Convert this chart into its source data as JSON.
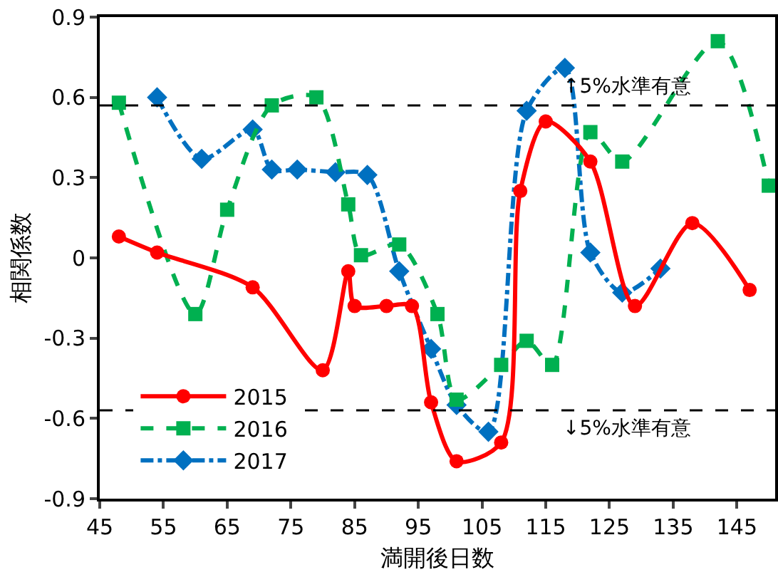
{
  "chart_data": {
    "type": "line",
    "xlabel": "満開後日数",
    "ylabel": "相関係数",
    "xlim": [
      45,
      151
    ],
    "xticks": [
      45,
      55,
      65,
      75,
      85,
      95,
      105,
      115,
      125,
      135,
      145
    ],
    "ylim": [
      -0.9,
      0.9
    ],
    "yticks": [
      -0.9,
      -0.6,
      -0.3,
      0,
      0.3,
      0.6,
      0.9
    ],
    "grid": false,
    "legend": "bottom left",
    "series": [
      {
        "name": "2015",
        "color": "#ff0000",
        "marker": "circle",
        "line_style": "solid",
        "x": [
          48,
          54,
          69,
          80,
          84,
          85,
          90,
          94,
          97,
          101,
          108,
          111,
          115,
          122,
          129,
          138,
          147
        ],
        "values": [
          0.08,
          0.02,
          -0.11,
          -0.42,
          -0.05,
          -0.18,
          -0.18,
          -0.18,
          -0.54,
          -0.76,
          -0.69,
          0.25,
          0.51,
          0.36,
          -0.18,
          0.13,
          -0.12
        ]
      },
      {
        "name": "2016",
        "color": "#00b050",
        "marker": "square",
        "line_style": "dashed",
        "x": [
          48,
          60,
          65,
          72,
          79,
          84,
          86,
          92,
          98,
          101,
          108,
          112,
          116,
          122,
          127,
          142,
          150
        ],
        "values": [
          0.58,
          -0.21,
          0.18,
          0.57,
          0.6,
          0.2,
          0.01,
          0.05,
          -0.21,
          -0.53,
          -0.4,
          -0.31,
          -0.4,
          0.47,
          0.36,
          0.81,
          0.27
        ]
      },
      {
        "name": "2017",
        "color": "#0070c0",
        "marker": "diamond",
        "line_style": "dashdot",
        "x": [
          54,
          61,
          69,
          72,
          76,
          82,
          87,
          92,
          97,
          101,
          106,
          112,
          118,
          122,
          127,
          133
        ],
        "values": [
          0.6,
          0.37,
          0.48,
          0.33,
          0.33,
          0.32,
          0.31,
          -0.05,
          -0.34,
          -0.55,
          -0.65,
          0.55,
          0.71,
          0.02,
          -0.13,
          -0.04
        ]
      }
    ],
    "ref_lines": [
      {
        "axis": "y",
        "value": 0.57,
        "label": "↑5%水準有意",
        "color": "#000000",
        "line_style": "dashed"
      },
      {
        "axis": "y",
        "value": -0.57,
        "label": "↓5%水準有意",
        "color": "#000000",
        "line_style": "dashed"
      }
    ]
  }
}
